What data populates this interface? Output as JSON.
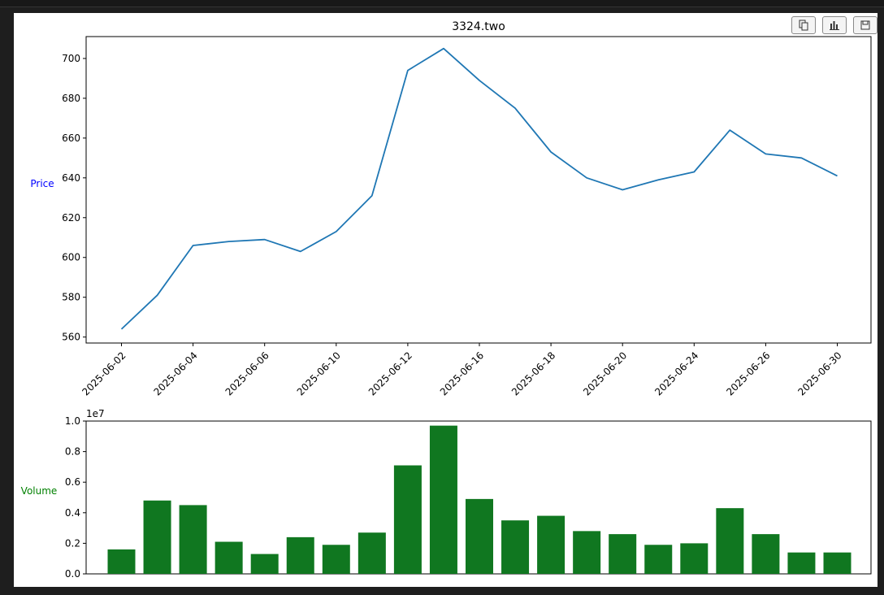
{
  "figure": {
    "title": "3324.two",
    "toolbar": [
      {
        "name": "copy-icon"
      },
      {
        "name": "bar-chart-icon"
      },
      {
        "name": "save-icon"
      }
    ]
  },
  "chart_data": [
    {
      "type": "line",
      "title": "3324.two",
      "ylabel": "Price",
      "ylabel_color": "#0000ff",
      "line_color": "#1f77b4",
      "ylim": [
        557,
        711
      ],
      "yticks": [
        560,
        580,
        600,
        620,
        640,
        660,
        680,
        700
      ],
      "xtick_labels": [
        "2025-06-02",
        "2025-06-04",
        "2025-06-06",
        "2025-06-10",
        "2025-06-12",
        "2025-06-16",
        "2025-06-18",
        "2025-06-20",
        "2025-06-24",
        "2025-06-26",
        "2025-06-30"
      ],
      "x": [
        "2025-06-02",
        "2025-06-03",
        "2025-06-04",
        "2025-06-05",
        "2025-06-06",
        "2025-06-09",
        "2025-06-10",
        "2025-06-11",
        "2025-06-12",
        "2025-06-13",
        "2025-06-16",
        "2025-06-17",
        "2025-06-18",
        "2025-06-19",
        "2025-06-20",
        "2025-06-23",
        "2025-06-24",
        "2025-06-25",
        "2025-06-26",
        "2025-06-27",
        "2025-06-30"
      ],
      "values": [
        564,
        581,
        606,
        608,
        609,
        603,
        613,
        631,
        694,
        705,
        689,
        675,
        653,
        640,
        634,
        639,
        643,
        664,
        652,
        650,
        641
      ],
      "grid": false
    },
    {
      "type": "bar",
      "ylabel": "Volume",
      "ylabel_color": "#008000",
      "bar_color": "#107720",
      "offset_text": "1e7",
      "ylim": [
        0,
        1.0
      ],
      "yticks": [
        0.0,
        0.2,
        0.4,
        0.6,
        0.8,
        1.0
      ],
      "ytick_labels": [
        "0.0",
        "0.2",
        "0.4",
        "0.6",
        "0.8",
        "1.0"
      ],
      "x": [
        "2025-06-02",
        "2025-06-03",
        "2025-06-04",
        "2025-06-05",
        "2025-06-06",
        "2025-06-09",
        "2025-06-10",
        "2025-06-11",
        "2025-06-12",
        "2025-06-13",
        "2025-06-16",
        "2025-06-17",
        "2025-06-18",
        "2025-06-19",
        "2025-06-20",
        "2025-06-23",
        "2025-06-24",
        "2025-06-25",
        "2025-06-26",
        "2025-06-27",
        "2025-06-30"
      ],
      "values": [
        0.16,
        0.48,
        0.45,
        0.21,
        0.13,
        0.24,
        0.19,
        0.27,
        0.71,
        0.97,
        0.49,
        0.35,
        0.38,
        0.28,
        0.26,
        0.19,
        0.2,
        0.43,
        0.26,
        0.14,
        0.14
      ],
      "grid": false
    }
  ]
}
